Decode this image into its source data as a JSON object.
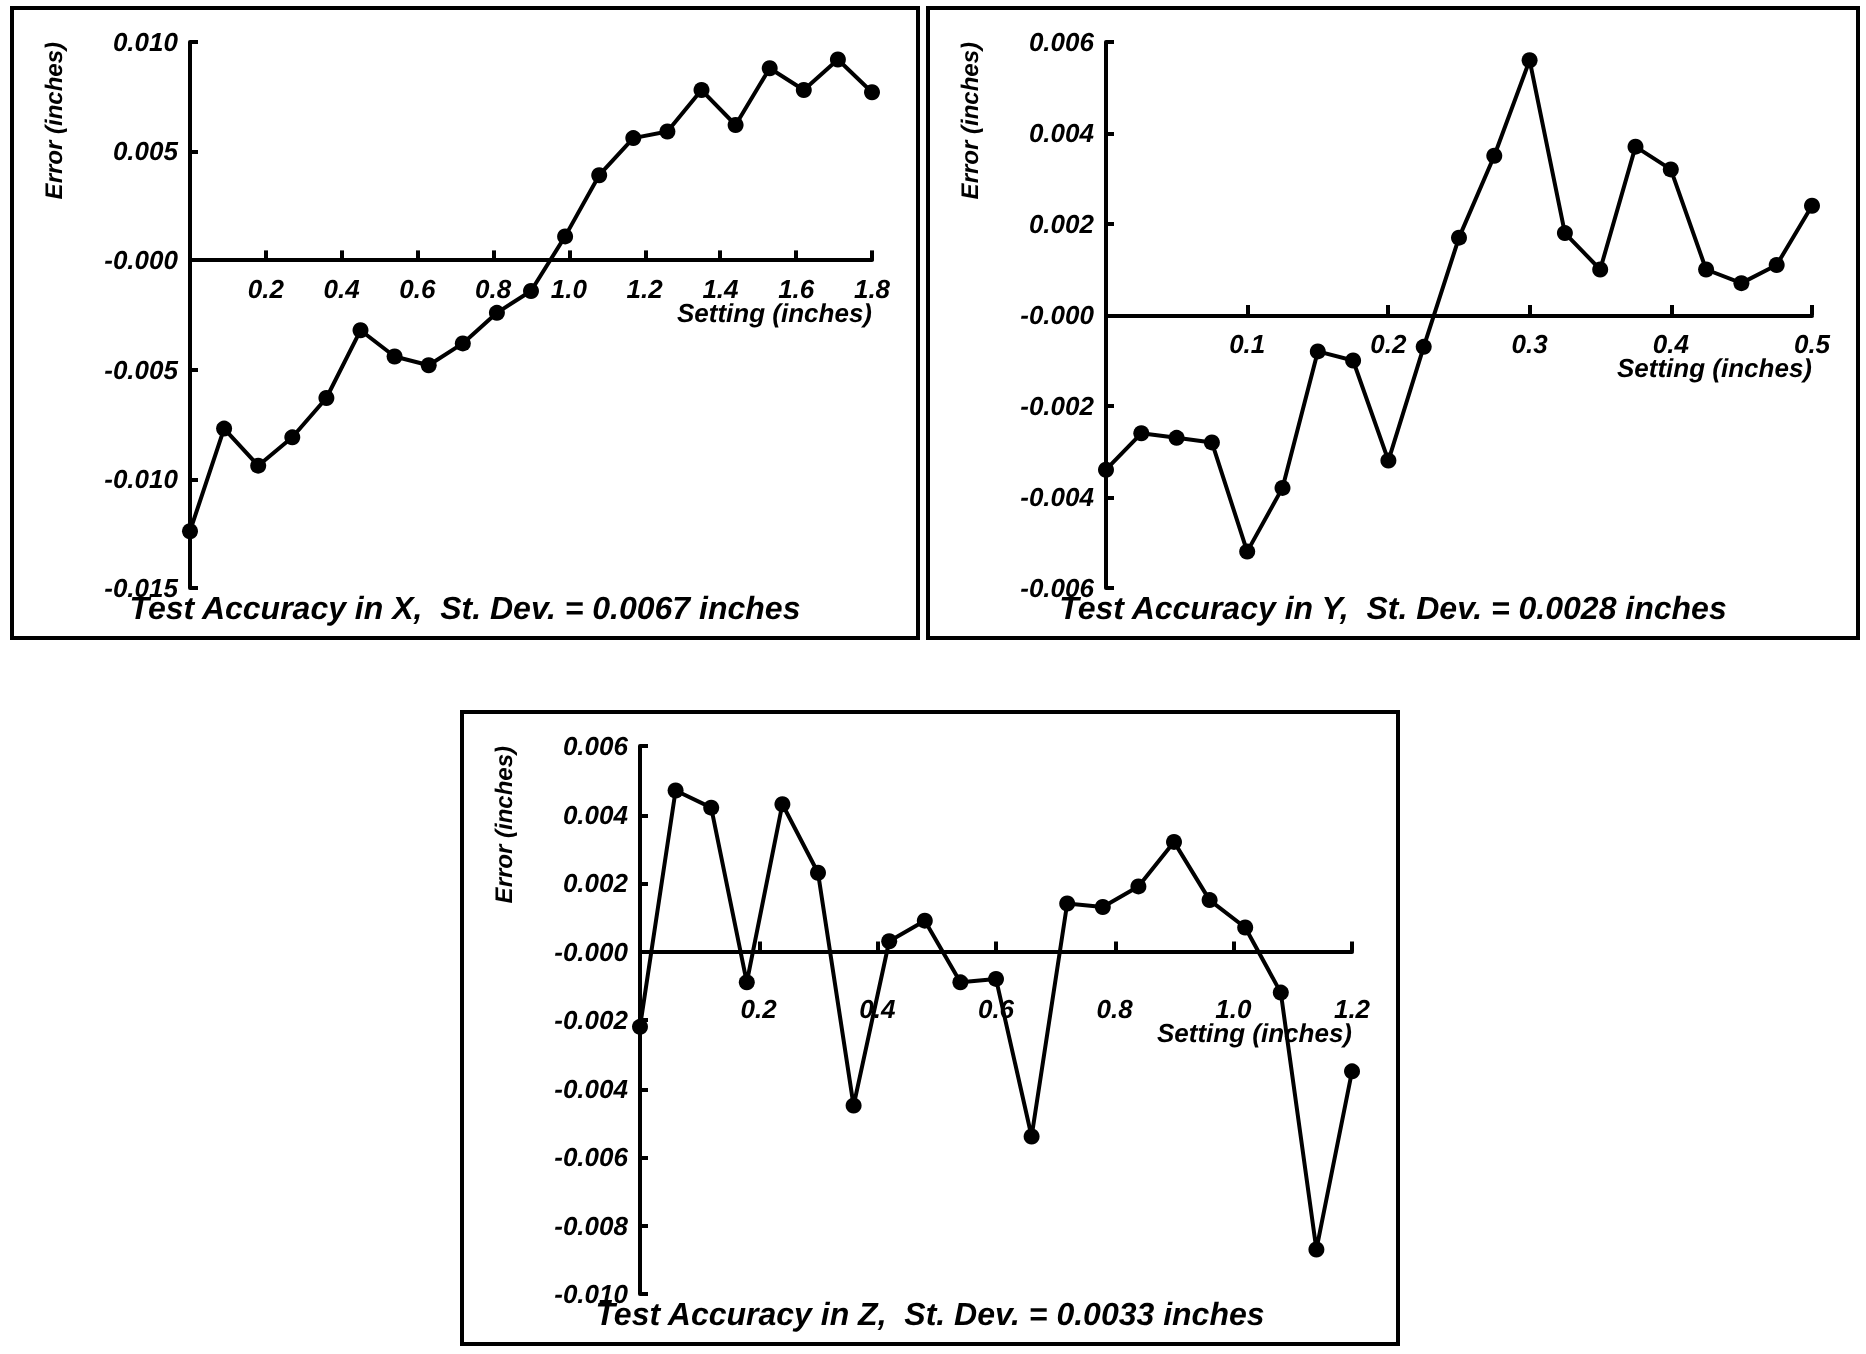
{
  "chart_data": [
    {
      "type": "line",
      "title": "Test Accuracy in X,  St. Dev. = 0.0067 inches",
      "xlabel": "Setting (inches)",
      "ylabel": "Error (inches)",
      "marker": "circle",
      "line_style": "solid",
      "x": [
        0,
        0.09,
        0.18,
        0.27,
        0.36,
        0.45,
        0.54,
        0.63,
        0.72,
        0.81,
        0.9,
        0.99,
        1.08,
        1.17,
        1.26,
        1.35,
        1.44,
        1.53,
        1.62,
        1.71,
        1.8
      ],
      "series": [
        {
          "color": "#000000",
          "values": [
            -0.0124,
            -0.0077,
            -0.0094,
            -0.0081,
            -0.0063,
            -0.0032,
            -0.0044,
            -0.0048,
            -0.0038,
            -0.0024,
            -0.0014,
            0.0011,
            0.0039,
            0.0056,
            0.0059,
            0.0078,
            0.0062,
            0.0088,
            0.0078,
            0.0092,
            0.0077
          ]
        }
      ],
      "xlim": [
        0,
        1.8
      ],
      "xticks": [
        0.2,
        0.4,
        0.6,
        0.8,
        {
          "value": 1,
          "label": "1.0"
        },
        1.2,
        1.4,
        1.6,
        1.8
      ],
      "ylim": [
        -0.015,
        0.01
      ],
      "yticks": [
        {
          "value": -0.015,
          "label": "-0.015"
        },
        {
          "value": -0.01,
          "label": "-0.010"
        },
        {
          "value": -0.005,
          "label": "-0.005"
        },
        {
          "value": 0,
          "label": "-0.000"
        },
        {
          "value": 0.005,
          "label": "0.005"
        },
        {
          "value": 0.01,
          "label": "0.010"
        }
      ]
    },
    {
      "type": "line",
      "title": "Test Accuracy in Y,  St. Dev. = 0.0028 inches",
      "xlabel": "Setting (inches)",
      "ylabel": "Error (inches)",
      "marker": "circle",
      "line_style": "solid",
      "x": [
        0,
        0.025,
        0.05,
        0.075,
        0.1,
        0.125,
        0.15,
        0.175,
        0.2,
        0.225,
        0.25,
        0.275,
        0.3,
        0.325,
        0.35,
        0.375,
        0.4,
        0.425,
        0.45,
        0.475,
        0.5
      ],
      "series": [
        {
          "color": "#000000",
          "values": [
            -0.0034,
            -0.0026,
            -0.0027,
            -0.0028,
            -0.0052,
            -0.0038,
            -0.0008,
            -0.001,
            -0.0032,
            -0.0007,
            0.0017,
            0.0035,
            0.0056,
            0.0018,
            0.001,
            0.0037,
            0.0032,
            0.001,
            0.0007,
            0.0011,
            0.0024
          ]
        }
      ],
      "xlim": [
        0,
        0.5
      ],
      "xticks": [
        0.1,
        0.2,
        0.3,
        0.4,
        0.5
      ],
      "ylim": [
        -0.006,
        0.006
      ],
      "yticks": [
        {
          "value": -0.006,
          "label": "-0.006"
        },
        {
          "value": -0.004,
          "label": "-0.004"
        },
        {
          "value": -0.002,
          "label": "-0.002"
        },
        {
          "value": 0,
          "label": "-0.000"
        },
        {
          "value": 0.002,
          "label": "0.002"
        },
        {
          "value": 0.004,
          "label": "0.004"
        },
        {
          "value": 0.006,
          "label": "0.006"
        }
      ]
    },
    {
      "type": "line",
      "title": "Test Accuracy in Z,  St. Dev. = 0.0033 inches",
      "xlabel": "Setting (inches)",
      "ylabel": "Error (inches)",
      "marker": "circle",
      "line_style": "solid",
      "x": [
        0,
        0.06,
        0.12,
        0.18,
        0.24,
        0.3,
        0.36,
        0.42,
        0.48,
        0.54,
        0.6,
        0.66,
        0.72,
        0.78,
        0.84,
        0.9,
        0.96,
        1.02,
        1.08,
        1.14,
        1.2
      ],
      "series": [
        {
          "color": "#000000",
          "values": [
            -0.0022,
            0.0047,
            0.0042,
            -0.0009,
            0.0043,
            0.0023,
            -0.0045,
            0.0003,
            0.0009,
            -0.0009,
            -0.0008,
            -0.0054,
            0.0014,
            0.0013,
            0.0019,
            0.0032,
            0.0015,
            0.0007,
            -0.0012,
            -0.0087,
            -0.0035
          ]
        }
      ],
      "xlim": [
        0,
        1.2
      ],
      "xticks": [
        0.2,
        0.4,
        0.6,
        0.8,
        {
          "value": 1,
          "label": "1.0"
        },
        1.2
      ],
      "ylim": [
        -0.01,
        0.006
      ],
      "yticks": [
        {
          "value": -0.01,
          "label": "-0.010"
        },
        {
          "value": -0.008,
          "label": "-0.008"
        },
        {
          "value": -0.006,
          "label": "-0.006"
        },
        {
          "value": -0.004,
          "label": "-0.004"
        },
        {
          "value": -0.002,
          "label": "-0.002"
        },
        {
          "value": 0,
          "label": "-0.000"
        },
        {
          "value": 0.002,
          "label": "0.002"
        },
        {
          "value": 0.004,
          "label": "0.004"
        },
        {
          "value": 0.006,
          "label": "0.006"
        }
      ]
    }
  ]
}
